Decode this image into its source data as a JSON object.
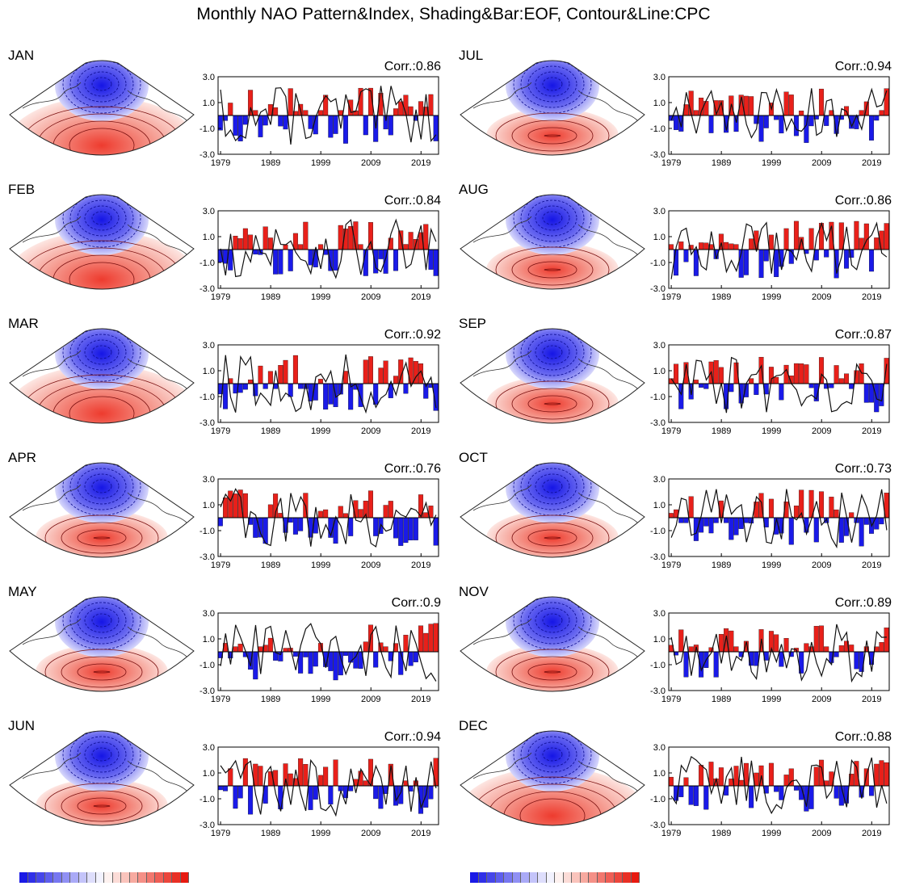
{
  "title": "Monthly NAO Pattern&Index, Shading&Bar:EOF, Contour&Line:CPC",
  "colors": {
    "positive": "#e8201a",
    "negative": "#1a1ae8",
    "line": "#111111"
  },
  "chart_data": [
    {
      "type": "bar",
      "month": "JAN",
      "corr_text": "Corr.:0.86",
      "ylim": [
        -3,
        3
      ],
      "yticks": [
        "3.0",
        "1.0",
        "-1.0",
        "-3.0"
      ],
      "xticks": [
        "1979",
        "1989",
        "1999",
        "2009",
        "2019"
      ]
    },
    {
      "type": "bar",
      "month": "FEB",
      "corr_text": "Corr.:0.84",
      "ylim": [
        -3,
        3
      ],
      "yticks": [
        "3.0",
        "1.0",
        "-1.0",
        "-3.0"
      ],
      "xticks": [
        "1979",
        "1989",
        "1999",
        "2009",
        "2019"
      ]
    },
    {
      "type": "bar",
      "month": "MAR",
      "corr_text": "Corr.:0.92",
      "ylim": [
        -3,
        3
      ],
      "yticks": [
        "3.0",
        "1.0",
        "-1.0",
        "-3.0"
      ],
      "xticks": [
        "1979",
        "1989",
        "1999",
        "2009",
        "2019"
      ]
    },
    {
      "type": "bar",
      "month": "APR",
      "corr_text": "Corr.:0.76",
      "ylim": [
        -3,
        3
      ],
      "yticks": [
        "3.0",
        "1.0",
        "-1.0",
        "-3.0"
      ],
      "xticks": [
        "1979",
        "1989",
        "1999",
        "2009",
        "2019"
      ]
    },
    {
      "type": "bar",
      "month": "MAY",
      "corr_text": "Corr.:0.9",
      "ylim": [
        -3,
        3
      ],
      "yticks": [
        "3.0",
        "1.0",
        "-1.0",
        "-3.0"
      ],
      "xticks": [
        "1979",
        "1989",
        "1999",
        "2009",
        "2019"
      ]
    },
    {
      "type": "bar",
      "month": "JUN",
      "corr_text": "Corr.:0.94",
      "ylim": [
        -3,
        3
      ],
      "yticks": [
        "3.0",
        "1.0",
        "-1.0",
        "-3.0"
      ],
      "xticks": [
        "1979",
        "1989",
        "1999",
        "2009",
        "2019"
      ]
    },
    {
      "type": "bar",
      "month": "JUL",
      "corr_text": "Corr.:0.94",
      "ylim": [
        -3,
        3
      ],
      "yticks": [
        "3.0",
        "1.0",
        "-1.0",
        "-3.0"
      ],
      "xticks": [
        "1979",
        "1989",
        "1999",
        "2009",
        "2019"
      ]
    },
    {
      "type": "bar",
      "month": "AUG",
      "corr_text": "Corr.:0.86",
      "ylim": [
        -3,
        3
      ],
      "yticks": [
        "3.0",
        "1.0",
        "-1.0",
        "-3.0"
      ],
      "xticks": [
        "1979",
        "1989",
        "1999",
        "2009",
        "2019"
      ]
    },
    {
      "type": "bar",
      "month": "SEP",
      "corr_text": "Corr.:0.87",
      "ylim": [
        -3,
        3
      ],
      "yticks": [
        "3.0",
        "1.0",
        "-1.0",
        "-3.0"
      ],
      "xticks": [
        "1979",
        "1989",
        "1999",
        "2009",
        "2019"
      ]
    },
    {
      "type": "bar",
      "month": "OCT",
      "corr_text": "Corr.:0.73",
      "ylim": [
        -3,
        3
      ],
      "yticks": [
        "3.0",
        "1.0",
        "-1.0",
        "-3.0"
      ],
      "xticks": [
        "1979",
        "1989",
        "1999",
        "2009",
        "2019"
      ]
    },
    {
      "type": "bar",
      "month": "NOV",
      "corr_text": "Corr.:0.89",
      "ylim": [
        -3,
        3
      ],
      "yticks": [
        "3.0",
        "1.0",
        "-1.0",
        "-3.0"
      ],
      "xticks": [
        "1979",
        "1989",
        "1999",
        "2009",
        "2019"
      ]
    },
    {
      "type": "bar",
      "month": "DEC",
      "corr_text": "Corr.:0.88",
      "ylim": [
        -3,
        3
      ],
      "yticks": [
        "3.0",
        "1.0",
        "-1.0",
        "-3.0"
      ],
      "xticks": [
        "1979",
        "1989",
        "1999",
        "2009",
        "2019"
      ]
    }
  ]
}
